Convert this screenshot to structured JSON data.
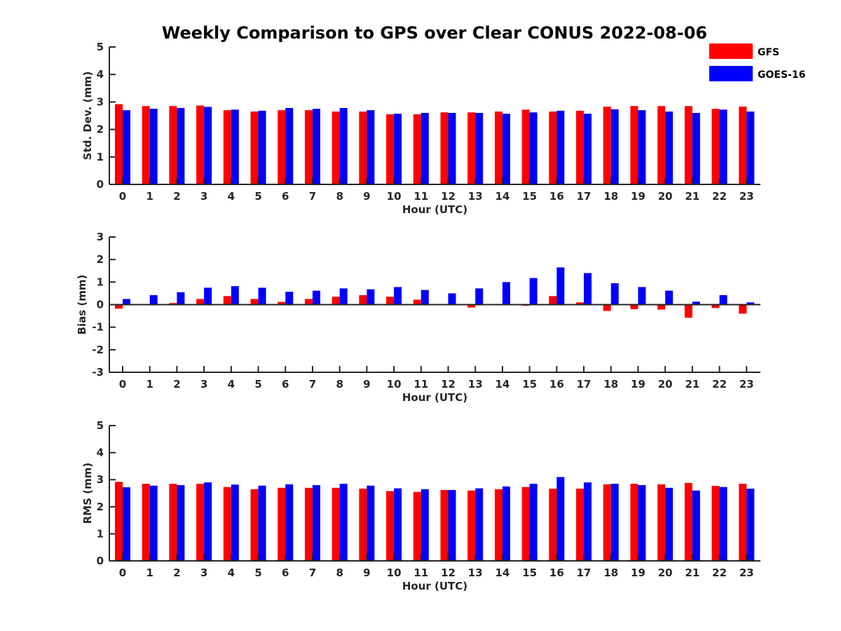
{
  "title": "Weekly Comparison to GPS over Clear CONUS 2022-08-06",
  "legend": [
    {
      "label": "GFS",
      "color": "#ff0000"
    },
    {
      "label": "GOES-16",
      "color": "#0000ff"
    }
  ],
  "chart_data": [
    {
      "type": "bar",
      "xlabel": "Hour (UTC)",
      "ylabel": "Std. Dev. (mm)",
      "ylim": [
        0,
        5
      ],
      "yticks": [
        "0",
        "1",
        "2",
        "3",
        "4",
        "5"
      ],
      "categories": [
        "0",
        "1",
        "2",
        "3",
        "4",
        "5",
        "6",
        "7",
        "8",
        "9",
        "10",
        "11",
        "12",
        "13",
        "14",
        "15",
        "16",
        "17",
        "18",
        "19",
        "20",
        "21",
        "22",
        "23"
      ],
      "series": [
        {
          "name": "GFS",
          "color": "#ff0000",
          "values": [
            2.92,
            2.85,
            2.85,
            2.87,
            2.7,
            2.65,
            2.7,
            2.7,
            2.65,
            2.65,
            2.55,
            2.55,
            2.62,
            2.62,
            2.65,
            2.72,
            2.65,
            2.68,
            2.83,
            2.85,
            2.85,
            2.85,
            2.75,
            2.83
          ]
        },
        {
          "name": "GOES-16",
          "color": "#0000ff",
          "values": [
            2.7,
            2.75,
            2.78,
            2.82,
            2.72,
            2.68,
            2.78,
            2.75,
            2.78,
            2.7,
            2.57,
            2.6,
            2.6,
            2.6,
            2.57,
            2.62,
            2.68,
            2.57,
            2.73,
            2.7,
            2.65,
            2.6,
            2.72,
            2.65
          ]
        }
      ]
    },
    {
      "type": "bar",
      "xlabel": "Hour (UTC)",
      "ylabel": "Bias (mm)",
      "ylim": [
        -3,
        3
      ],
      "yticks": [
        "-3",
        "-2",
        "-1",
        "0",
        "1",
        "2",
        "3"
      ],
      "categories": [
        "0",
        "1",
        "2",
        "3",
        "4",
        "5",
        "6",
        "7",
        "8",
        "9",
        "10",
        "11",
        "12",
        "13",
        "14",
        "15",
        "16",
        "17",
        "18",
        "19",
        "20",
        "21",
        "22",
        "23"
      ],
      "series": [
        {
          "name": "GFS",
          "color": "#ff0000",
          "values": [
            -0.18,
            0.0,
            0.07,
            0.25,
            0.38,
            0.25,
            0.12,
            0.25,
            0.35,
            0.42,
            0.35,
            0.22,
            -0.03,
            -0.13,
            -0.03,
            -0.05,
            0.38,
            0.1,
            -0.28,
            -0.2,
            -0.22,
            -0.58,
            -0.15,
            -0.4
          ]
        },
        {
          "name": "GOES-16",
          "color": "#0000ff",
          "values": [
            0.25,
            0.42,
            0.55,
            0.75,
            0.82,
            0.75,
            0.57,
            0.62,
            0.72,
            0.68,
            0.78,
            0.65,
            0.5,
            0.72,
            1.0,
            1.18,
            1.65,
            1.4,
            0.95,
            0.78,
            0.62,
            0.13,
            0.42,
            0.1
          ]
        }
      ]
    },
    {
      "type": "bar",
      "xlabel": "Hour (UTC)",
      "ylabel": "RMS (mm)",
      "ylim": [
        0,
        5
      ],
      "yticks": [
        "0",
        "1",
        "2",
        "3",
        "4",
        "5"
      ],
      "categories": [
        "0",
        "1",
        "2",
        "3",
        "4",
        "5",
        "6",
        "7",
        "8",
        "9",
        "10",
        "11",
        "12",
        "13",
        "14",
        "15",
        "16",
        "17",
        "18",
        "19",
        "20",
        "21",
        "22",
        "23"
      ],
      "series": [
        {
          "name": "GFS",
          "color": "#ff0000",
          "values": [
            2.92,
            2.85,
            2.85,
            2.85,
            2.73,
            2.65,
            2.7,
            2.7,
            2.7,
            2.67,
            2.58,
            2.55,
            2.62,
            2.6,
            2.65,
            2.73,
            2.67,
            2.67,
            2.83,
            2.85,
            2.83,
            2.88,
            2.77,
            2.85
          ]
        },
        {
          "name": "GOES-16",
          "color": "#0000ff",
          "values": [
            2.72,
            2.78,
            2.8,
            2.9,
            2.82,
            2.78,
            2.83,
            2.8,
            2.85,
            2.78,
            2.68,
            2.65,
            2.62,
            2.68,
            2.75,
            2.85,
            3.1,
            2.9,
            2.85,
            2.8,
            2.7,
            2.6,
            2.73,
            2.67
          ]
        }
      ]
    }
  ]
}
